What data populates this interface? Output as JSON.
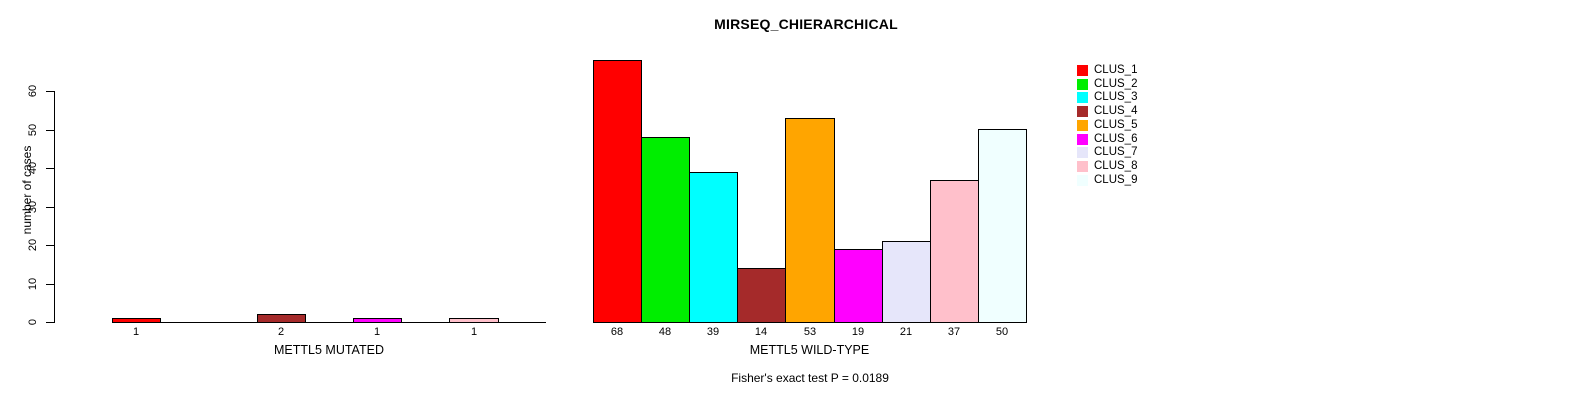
{
  "title": "MIRSEQ_CHIERARCHICAL",
  "footnote": "Fisher's exact test P = 0.0189",
  "y_axis": {
    "label": "number of cases",
    "ticks": [
      0,
      10,
      20,
      30,
      40,
      50,
      60
    ]
  },
  "legend": {
    "position": "right",
    "items": [
      {
        "label": "CLUS_1",
        "color": "#FF0000"
      },
      {
        "label": "CLUS_2",
        "color": "#00EE00"
      },
      {
        "label": "CLUS_3",
        "color": "#00FFFF"
      },
      {
        "label": "CLUS_4",
        "color": "#A52A2A"
      },
      {
        "label": "CLUS_5",
        "color": "#FFA500"
      },
      {
        "label": "CLUS_6",
        "color": "#FF00FF"
      },
      {
        "label": "CLUS_7",
        "color": "#E6E6FA"
      },
      {
        "label": "CLUS_8",
        "color": "#FFC0CB"
      },
      {
        "label": "CLUS_9",
        "color": "#F0FFFF"
      }
    ]
  },
  "chart_data": [
    {
      "type": "bar",
      "xlabel": "METTL5 MUTATED",
      "ylabel": "number of cases",
      "ylim": [
        0,
        60
      ],
      "grid": false,
      "categories": [
        "CLUS_1",
        "CLUS_2",
        "CLUS_3",
        "CLUS_4",
        "CLUS_5",
        "CLUS_6",
        "CLUS_7",
        "CLUS_8",
        "CLUS_9"
      ],
      "values": [
        1,
        0,
        0,
        2,
        0,
        1,
        0,
        1,
        0
      ],
      "bar_labels": [
        "1",
        "",
        "",
        "2",
        "",
        "1",
        "",
        "1",
        ""
      ],
      "colors": [
        "#FF0000",
        "#00EE00",
        "#00FFFF",
        "#A52A2A",
        "#FFA500",
        "#FF00FF",
        "#E6E6FA",
        "#FFC0CB",
        "#F0FFFF"
      ]
    },
    {
      "type": "bar",
      "xlabel": "METTL5 WILD-TYPE",
      "ylabel": "number of cases",
      "ylim": [
        0,
        60
      ],
      "grid": false,
      "categories": [
        "CLUS_1",
        "CLUS_2",
        "CLUS_3",
        "CLUS_4",
        "CLUS_5",
        "CLUS_6",
        "CLUS_7",
        "CLUS_8",
        "CLUS_9"
      ],
      "values": [
        68,
        48,
        39,
        14,
        53,
        19,
        21,
        37,
        50
      ],
      "bar_labels": [
        "68",
        "48",
        "39",
        "14",
        "53",
        "19",
        "21",
        "37",
        "50"
      ],
      "colors": [
        "#FF0000",
        "#00EE00",
        "#00FFFF",
        "#A52A2A",
        "#FFA500",
        "#FF00FF",
        "#E6E6FA",
        "#FFC0CB",
        "#F0FFFF"
      ]
    }
  ]
}
